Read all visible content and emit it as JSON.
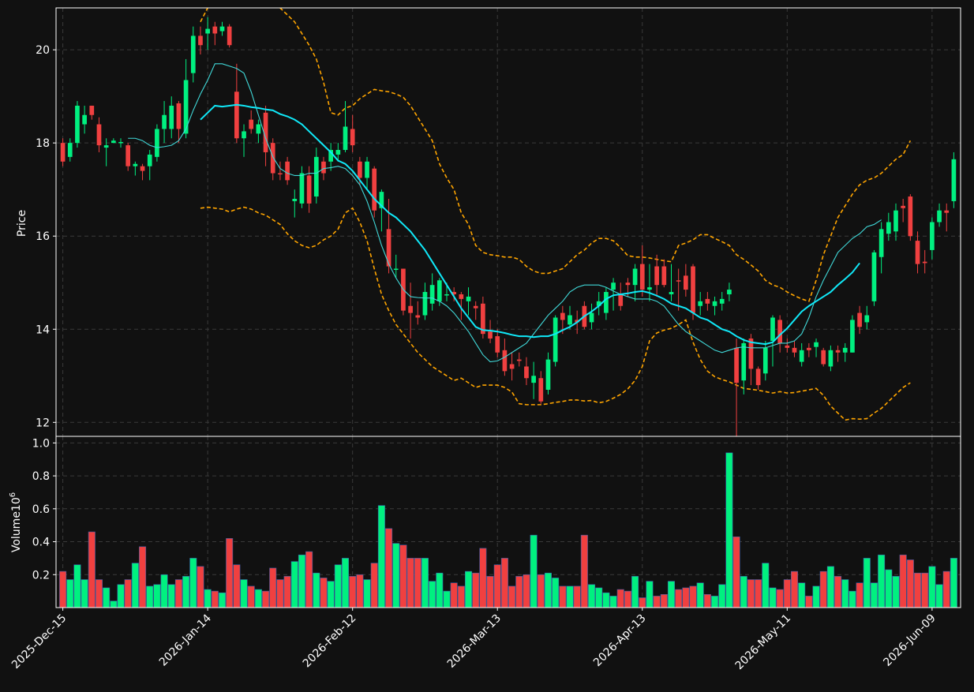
{
  "colors": {
    "background": "#111111",
    "up": "#00f080",
    "down": "#f04040",
    "ma_fast": "#40d8d8",
    "ma_slow": "#10e8f8",
    "bands": "#ffa500",
    "grid": "#3a3a3a",
    "frame": "#ffffff"
  },
  "chart_data": {
    "type": "candlestick",
    "ylabel_price": "Price",
    "ylabel_volume": "Volume",
    "volume_exponent_label": "10",
    "volume_exponent": "6",
    "price_ticks": [
      12,
      14,
      16,
      18,
      20
    ],
    "volume_ticks": [
      0.2,
      0.4,
      0.6,
      0.8,
      1.0
    ],
    "volume_tick_labels": [
      "0.2",
      "0.4",
      "0.6",
      "0.8",
      "1.0"
    ],
    "price_ylim": [
      11.7,
      20.9
    ],
    "volume_ylim": [
      0,
      1.04
    ],
    "x_tick_labels": [
      "2025-Dec-15",
      "2026-Jan-14",
      "2026-Feb-12",
      "2026-Mar-13",
      "2026-Apr-13",
      "2026-May-11",
      "2026-Jun-09"
    ],
    "x_tick_index": [
      0,
      20,
      40,
      60,
      80,
      100,
      120
    ],
    "grid": true,
    "bar_count": 124,
    "open_close": [
      [
        18,
        17.6
      ],
      [
        17.7,
        18
      ],
      [
        18,
        18.8
      ],
      [
        18.4,
        18.6
      ],
      [
        18.8,
        18.6
      ],
      [
        18.4,
        17.95
      ],
      [
        17.9,
        17.95
      ],
      [
        18,
        18.05
      ],
      [
        18,
        18.02
      ],
      [
        17.95,
        17.5
      ],
      [
        17.5,
        17.55
      ],
      [
        17.5,
        17.4
      ],
      [
        17.5,
        17.75
      ],
      [
        17.7,
        18.3
      ],
      [
        18.3,
        18.6
      ],
      [
        18.3,
        18.8
      ],
      [
        18.85,
        18.3
      ],
      [
        18.2,
        19.35
      ],
      [
        19.5,
        20.3
      ],
      [
        20.3,
        20.1
      ],
      [
        20.35,
        20.45
      ],
      [
        20.5,
        20.35
      ],
      [
        20.4,
        20.5
      ],
      [
        20.5,
        20.1
      ],
      [
        19.1,
        18.1
      ],
      [
        18.1,
        18.25
      ],
      [
        18.5,
        18.3
      ],
      [
        18.2,
        18.4
      ],
      [
        18.65,
        17.8
      ],
      [
        18,
        17.35
      ],
      [
        17.35,
        17.33
      ],
      [
        17.6,
        17.2
      ],
      [
        16.75,
        16.8
      ],
      [
        16.7,
        17.35
      ],
      [
        17.3,
        16.7
      ],
      [
        16.85,
        17.7
      ],
      [
        17.6,
        17.35
      ],
      [
        17.6,
        17.85
      ],
      [
        17.75,
        17.85
      ],
      [
        17.85,
        18.35
      ],
      [
        18.3,
        17.95
      ],
      [
        17.6,
        17.25
      ],
      [
        17.25,
        17.6
      ],
      [
        17.45,
        16.55
      ],
      [
        16.6,
        16.95
      ],
      [
        16.15,
        15.35
      ],
      [
        15.3,
        15.3
      ],
      [
        15.3,
        14.4
      ],
      [
        14.5,
        14.35
      ],
      [
        14.3,
        14.25
      ],
      [
        14.3,
        14.8
      ],
      [
        14.55,
        14.95
      ],
      [
        14.6,
        15.05
      ],
      [
        14.75,
        14.75
      ],
      [
        14.8,
        14.75
      ],
      [
        14.75,
        14.65
      ],
      [
        14.6,
        14.7
      ],
      [
        14.5,
        14.45
      ],
      [
        14.55,
        13.9
      ],
      [
        13.95,
        13.8
      ],
      [
        13.85,
        13.5
      ],
      [
        13.55,
        13.1
      ],
      [
        13.25,
        13.15
      ],
      [
        13.35,
        13.32
      ],
      [
        13.2,
        12.95
      ],
      [
        12.85,
        13
      ],
      [
        12.95,
        12.45
      ],
      [
        12.7,
        13.35
      ],
      [
        13.3,
        14.25
      ],
      [
        14.35,
        14.2
      ],
      [
        14.1,
        14.3
      ],
      [
        14.2,
        14.15
      ],
      [
        14.5,
        14.05
      ],
      [
        14.15,
        14.35
      ],
      [
        14.5,
        14.6
      ],
      [
        14.35,
        14.8
      ],
      [
        14.85,
        15
      ],
      [
        14.75,
        14.5
      ],
      [
        15,
        14.95
      ],
      [
        14.95,
        15.3
      ],
      [
        15.4,
        14.85
      ],
      [
        14.85,
        14.9
      ],
      [
        15.35,
        14.95
      ],
      [
        15.35,
        14.95
      ],
      [
        14.75,
        14.8
      ],
      [
        15.05,
        15.03
      ],
      [
        15.15,
        14.85
      ],
      [
        15.35,
        14.35
      ],
      [
        14.5,
        14.6
      ],
      [
        14.65,
        14.55
      ],
      [
        14.5,
        14.6
      ],
      [
        14.55,
        14.65
      ],
      [
        14.75,
        14.85
      ],
      [
        13.6,
        12.85
      ],
      [
        12.9,
        13.7
      ],
      [
        13.8,
        13.15
      ],
      [
        13.15,
        12.8
      ],
      [
        13.05,
        13.6
      ],
      [
        13.75,
        14.25
      ],
      [
        14.2,
        13.7
      ],
      [
        13.65,
        13.6
      ],
      [
        13.6,
        13.5
      ],
      [
        13.3,
        13.55
      ],
      [
        13.6,
        13.55
      ],
      [
        13.62,
        13.72
      ],
      [
        13.55,
        13.25
      ],
      [
        13.2,
        13.55
      ],
      [
        13.55,
        13.5
      ],
      [
        13.5,
        13.6
      ],
      [
        13.5,
        14.2
      ],
      [
        14.35,
        14.05
      ],
      [
        14.15,
        14.3
      ],
      [
        14.6,
        15.65
      ],
      [
        15.55,
        16.15
      ],
      [
        16.05,
        16.3
      ],
      [
        16.1,
        16.55
      ],
      [
        16.65,
        16.6
      ],
      [
        16.85,
        16
      ],
      [
        15.9,
        15.4
      ],
      [
        15.45,
        15.42
      ],
      [
        15.7,
        16.3
      ],
      [
        16.3,
        16.55
      ],
      [
        16.55,
        16.5
      ],
      [
        16.75,
        17.65
      ]
    ],
    "high": [
      18.1,
      18.1,
      18.9,
      18.8,
      18.8,
      18.55,
      18.1,
      18.1,
      18.1,
      18,
      17.6,
      17.55,
      17.85,
      18.4,
      18.9,
      19,
      18.9,
      19.8,
      20.5,
      20.5,
      20.7,
      20.6,
      20.6,
      20.55,
      19.7,
      18.4,
      18.7,
      18.5,
      18.8,
      18.1,
      17.6,
      17.7,
      17,
      17.5,
      17.5,
      17.9,
      17.7,
      18,
      18,
      18.9,
      18.6,
      17.7,
      17.7,
      17.5,
      17,
      16.8,
      15.6,
      15.3,
      15,
      14.6,
      15,
      15.2,
      15.1,
      15,
      14.9,
      14.8,
      14.9,
      14.6,
      14.7,
      14.2,
      14,
      13.8,
      13.5,
      13.5,
      13.4,
      13.3,
      13.1,
      13.5,
      14.3,
      14.5,
      14.5,
      14.4,
      14.6,
      14.55,
      14.8,
      14.9,
      15.1,
      15,
      15.1,
      15.4,
      15.8,
      15.4,
      15.6,
      15.5,
      15.4,
      15.3,
      15.4,
      15.4,
      14.8,
      14.8,
      14.7,
      14.8,
      15,
      13.8,
      13.8,
      13.9,
      13.2,
      13.75,
      14.3,
      14.3,
      13.8,
      13.75,
      13.7,
      13.7,
      13.8,
      13.6,
      13.65,
      13.65,
      13.7,
      14.3,
      14.5,
      14.5,
      15.7,
      16.3,
      16.5,
      16.7,
      16.8,
      16.9,
      16.1,
      15.7,
      16.4,
      16.7,
      16.7,
      17.8
    ],
    "low": [
      17.5,
      17.6,
      17.9,
      18.2,
      18.5,
      17.8,
      17.5,
      18,
      17.9,
      17.4,
      17.3,
      17.2,
      17.2,
      17.6,
      18,
      18.1,
      18,
      18.1,
      19.3,
      19.9,
      20,
      20.1,
      20.3,
      20.05,
      18,
      17.7,
      18.2,
      18,
      17.5,
      17.2,
      17.2,
      17.1,
      16.4,
      16.6,
      16.5,
      16.7,
      17.2,
      17.4,
      17.6,
      17.8,
      17.8,
      17.1,
      17,
      16.4,
      16.1,
      15.2,
      15.1,
      14.3,
      13.8,
      14.1,
      14.2,
      14.4,
      14.5,
      14.6,
      14.6,
      14.2,
      14.3,
      14.2,
      13.8,
      13.7,
      13.4,
      13,
      12.9,
      13.2,
      12.8,
      12.5,
      12.4,
      12.6,
      13.2,
      13.9,
      14,
      13.9,
      14,
      14,
      14.3,
      14.2,
      14.4,
      14.4,
      14.7,
      14.6,
      14.7,
      14.6,
      14.7,
      14.9,
      14.6,
      14.4,
      14.7,
      14.2,
      14.3,
      14.4,
      14.3,
      14.4,
      14.6,
      11.65,
      12.6,
      12.8,
      12.7,
      12.9,
      13.2,
      13.5,
      13.5,
      13.4,
      13.2,
      13.4,
      13.4,
      13.2,
      13.1,
      13.3,
      13.3,
      13.5,
      13.9,
      14,
      14.5,
      15.2,
      15.9,
      15.9,
      16.3,
      15.9,
      15.2,
      15.2,
      15.5,
      16.2,
      16.1,
      16.6
    ],
    "volume": [
      0.22,
      0.17,
      0.26,
      0.17,
      0.46,
      0.17,
      0.12,
      0.04,
      0.14,
      0.17,
      0.27,
      0.37,
      0.13,
      0.14,
      0.2,
      0.14,
      0.17,
      0.19,
      0.3,
      0.25,
      0.11,
      0.1,
      0.09,
      0.42,
      0.26,
      0.17,
      0.13,
      0.11,
      0.1,
      0.24,
      0.17,
      0.19,
      0.28,
      0.32,
      0.34,
      0.21,
      0.18,
      0.16,
      0.26,
      0.3,
      0.19,
      0.2,
      0.17,
      0.27,
      0.62,
      0.48,
      0.39,
      0.38,
      0.3,
      0.3,
      0.3,
      0.16,
      0.21,
      0.1,
      0.15,
      0.13,
      0.22,
      0.21,
      0.36,
      0.19,
      0.26,
      0.3,
      0.13,
      0.19,
      0.2,
      0.44,
      0.2,
      0.21,
      0.18,
      0.13,
      0.13,
      0.13,
      0.44,
      0.14,
      0.12,
      0.09,
      0.07,
      0.11,
      0.1,
      0.19,
      0.06,
      0.16,
      0.07,
      0.08,
      0.16,
      0.11,
      0.12,
      0.13,
      0.15,
      0.08,
      0.07,
      0.14,
      0.94,
      0.43,
      0.19,
      0.17,
      0.17,
      0.27,
      0.12,
      0.11,
      0.17,
      0.22,
      0.15,
      0.07,
      0.13,
      0.22,
      0.25,
      0.19,
      0.17,
      0.1,
      0.15,
      0.3,
      0.15,
      0.32,
      0.23,
      0.19,
      0.32,
      0.29,
      0.21,
      0.21,
      0.25,
      0.14,
      0.22,
      0.3
    ],
    "ma_fast_start": 9,
    "ma_fast": [
      18.1,
      18.1,
      18.05,
      17.95,
      17.9,
      17.92,
      17.95,
      18.05,
      18.3,
      18.7,
      19.05,
      19.35,
      19.7,
      19.7,
      19.65,
      19.6,
      19.5,
      19.1,
      18.6,
      18.1,
      17.7,
      17.45,
      17.35,
      17.3,
      17.3,
      17.35,
      17.35,
      17.45,
      17.47,
      17.5,
      17.45,
      17.3,
      17.1,
      16.75,
      16.3,
      15.8,
      15.4,
      15.1,
      14.85,
      14.7,
      14.68,
      14.67,
      14.67,
      14.6,
      14.5,
      14.35,
      14.15,
      13.95,
      13.7,
      13.45,
      13.3,
      13.32,
      13.4,
      13.5,
      13.6,
      13.7,
      13.9,
      14.1,
      14.3,
      14.45,
      14.6,
      14.8,
      14.9,
      14.95,
      14.95,
      14.95,
      14.9,
      14.82,
      14.75,
      14.7,
      14.65,
      14.65,
      14.65,
      14.6,
      14.5,
      14.3,
      14.1,
      13.95,
      13.85,
      13.75,
      13.65,
      13.55,
      13.5,
      13.55,
      13.6,
      13.62,
      13.6,
      13.6,
      13.6,
      13.65,
      13.7,
      13.7,
      13.75,
      13.9,
      14.25,
      14.7,
      15.05,
      15.35,
      15.65,
      15.8,
      15.95,
      16.05,
      16.2,
      16.25,
      16.35
    ],
    "ma_slow_start": 19,
    "ma_slow": [
      18.5,
      18.65,
      18.8,
      18.78,
      18.8,
      18.82,
      18.8,
      18.77,
      18.75,
      18.72,
      18.7,
      18.62,
      18.57,
      18.5,
      18.4,
      18.25,
      18.1,
      17.95,
      17.8,
      17.62,
      17.55,
      17.4,
      17.2,
      17,
      16.8,
      16.65,
      16.5,
      16.4,
      16.25,
      16.1,
      15.9,
      15.7,
      15.45,
      15.2,
      14.95,
      14.7,
      14.45,
      14.25,
      14.05,
      13.98,
      13.97,
      13.95,
      13.92,
      13.88,
      13.85,
      13.85,
      13.83,
      13.85,
      13.85,
      13.9,
      13.98,
      14.05,
      14.15,
      14.28,
      14.38,
      14.5,
      14.65,
      14.73,
      14.75,
      14.77,
      14.8,
      14.82,
      14.78,
      14.72,
      14.65,
      14.55,
      14.5,
      14.45,
      14.35,
      14.25,
      14.2,
      14.1,
      14,
      13.95,
      13.85,
      13.77,
      13.72,
      13.7,
      13.68,
      13.72,
      13.88,
      14.02,
      14.2,
      14.38,
      14.5,
      14.6,
      14.7,
      14.8,
      14.95,
      15.08,
      15.22,
      15.42
    ],
    "band_upper_start": 19,
    "band_upper": [
      20.6,
      20.9,
      21.1,
      21.25,
      21.3,
      21.35,
      21.3,
      21.25,
      21.2,
      21.1,
      21,
      20.9,
      20.75,
      20.6,
      20.35,
      20.1,
      19.8,
      19.3,
      18.65,
      18.6,
      18.75,
      18.8,
      18.95,
      19.05,
      19.15,
      19.12,
      19.1,
      19.05,
      18.98,
      18.8,
      18.55,
      18.3,
      18.05,
      17.55,
      17.25,
      17,
      16.5,
      16.25,
      15.8,
      15.65,
      15.6,
      15.58,
      15.55,
      15.55,
      15.5,
      15.35,
      15.25,
      15.2,
      15.2,
      15.25,
      15.3,
      15.45,
      15.6,
      15.7,
      15.85,
      15.95,
      15.95,
      15.9,
      15.75,
      15.58,
      15.55,
      15.55,
      15.53,
      15.5,
      15.47,
      15.45,
      15.8,
      15.85,
      15.92,
      16.03,
      16.03,
      15.95,
      15.88,
      15.8,
      15.6,
      15.5,
      15.38,
      15.25,
      15.05,
      14.95,
      14.9,
      14.8,
      14.72,
      14.65,
      14.6,
      15.05,
      15.6,
      16,
      16.4,
      16.65,
      16.9,
      17.1,
      17.2,
      17.25,
      17.35,
      17.5,
      17.65,
      17.75,
      18.05
    ],
    "band_lower_start": 19,
    "band_lower": [
      16.6,
      16.62,
      16.6,
      16.58,
      16.52,
      16.58,
      16.62,
      16.58,
      16.5,
      16.45,
      16.35,
      16.25,
      16.05,
      15.9,
      15.8,
      15.75,
      15.8,
      15.92,
      16,
      16.15,
      16.5,
      16.6,
      16.3,
      15.9,
      15.3,
      14.75,
      14.4,
      14.1,
      13.9,
      13.7,
      13.5,
      13.35,
      13.2,
      13.1,
      13,
      12.9,
      12.95,
      12.85,
      12.75,
      12.8,
      12.8,
      12.8,
      12.75,
      12.65,
      12.4,
      12.38,
      12.38,
      12.38,
      12.4,
      12.43,
      12.45,
      12.48,
      12.48,
      12.46,
      12.47,
      12.42,
      12.45,
      12.52,
      12.6,
      12.72,
      12.9,
      13.2,
      13.75,
      13.92,
      13.98,
      14.02,
      14.1,
      14.2,
      13.72,
      13.35,
      13.1,
      12.98,
      12.92,
      12.87,
      12.8,
      12.73,
      12.71,
      12.69,
      12.66,
      12.63,
      12.66,
      12.63,
      12.64,
      12.67,
      12.7,
      12.73,
      12.58,
      12.35,
      12.2,
      12.05,
      12.08,
      12.07,
      12.08,
      12.2,
      12.3,
      12.45,
      12.6,
      12.75,
      12.85
    ]
  }
}
